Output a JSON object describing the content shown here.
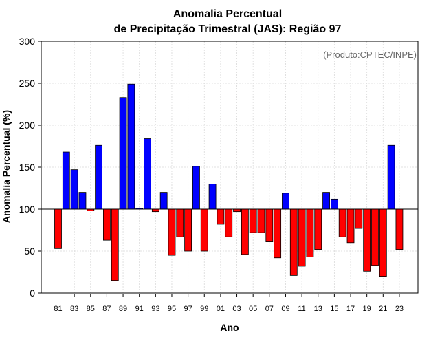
{
  "chart_data": {
    "type": "bar",
    "title_line1": "Anomalia Percentual",
    "title_line2": "de Precipitação Trimestral (JAS): Região 97",
    "xlabel": "Ano",
    "ylabel": "Anomalia Percentual (%)",
    "credit": "(Produto:CPTEC/INPE)",
    "baseline": 100,
    "ylim": [
      0,
      300
    ],
    "yticks": [
      0,
      50,
      100,
      150,
      200,
      250,
      300
    ],
    "grid": true,
    "colors": {
      "above": "#0000ff",
      "below": "#ff0000",
      "edge": "#000000",
      "grid": "#d9d9d9"
    },
    "categories": [
      "81",
      "82",
      "83",
      "84",
      "85",
      "86",
      "87",
      "88",
      "89",
      "90",
      "91",
      "92",
      "93",
      "94",
      "95",
      "96",
      "97",
      "98",
      "99",
      "00",
      "01",
      "02",
      "03",
      "04",
      "05",
      "06",
      "07",
      "08",
      "09",
      "10",
      "11",
      "12",
      "13",
      "14",
      "15",
      "16",
      "17",
      "18",
      "19",
      "20",
      "21",
      "22",
      "23"
    ],
    "xtick_labels": [
      "81",
      "83",
      "85",
      "87",
      "89",
      "91",
      "93",
      "95",
      "97",
      "99",
      "01",
      "03",
      "05",
      "07",
      "09",
      "11",
      "13",
      "15",
      "17",
      "19",
      "21",
      "23"
    ],
    "values": [
      53,
      168,
      147,
      120,
      98,
      176,
      63,
      15,
      233,
      249,
      101,
      184,
      97,
      120,
      45,
      67,
      50,
      151,
      50,
      130,
      82,
      67,
      97,
      46,
      72,
      72,
      61,
      42,
      119,
      21,
      32,
      43,
      52,
      120,
      112,
      67,
      60,
      77,
      26,
      33,
      20,
      176,
      52
    ]
  }
}
